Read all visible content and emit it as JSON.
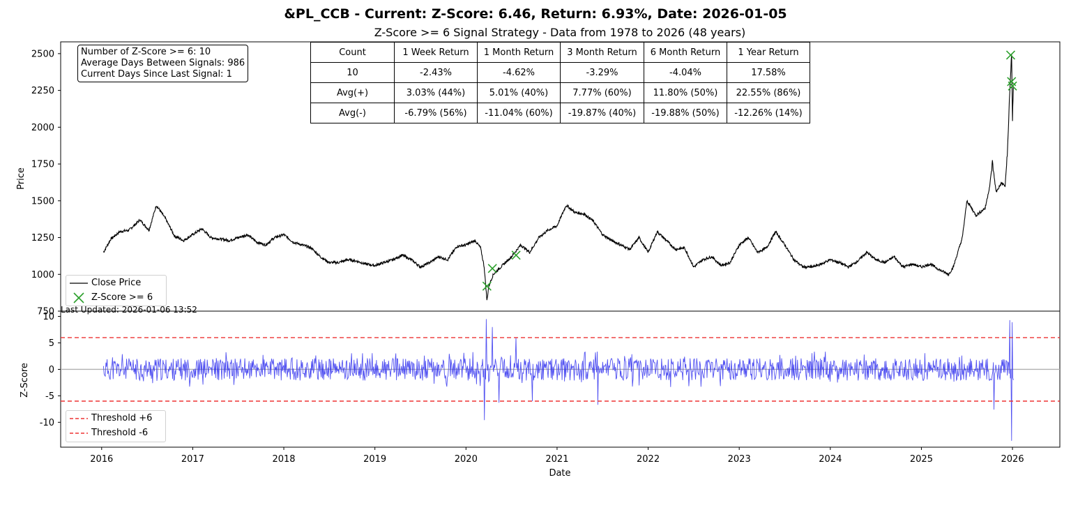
{
  "title": "&PL_CCB - Current: Z-Score: 6.46, Return: 6.93%, Date: 2026-01-05",
  "subtitle": "Z-Score >= 6 Signal Strategy - Data from 1978 to 2026 (48 years)",
  "stats": {
    "line1": "Number of Z-Score >= 6: 10",
    "line2": "Average Days Between Signals: 986",
    "line3": "Current Days Since Last Signal: 1"
  },
  "table": {
    "headers": [
      "Count",
      "1 Week Return",
      "1 Month Return",
      "3 Month Return",
      "6 Month Return",
      "1 Year Return"
    ],
    "rows": [
      [
        "10",
        "-2.43%",
        "-4.62%",
        "-3.29%",
        "-4.04%",
        "17.58%"
      ],
      [
        "Avg(+)",
        "3.03% (44%)",
        "5.01% (40%)",
        "7.77% (60%)",
        "11.80% (50%)",
        "22.55% (86%)"
      ],
      [
        "Avg(-)",
        "-6.79% (56%)",
        "-11.04% (60%)",
        "-19.87% (40%)",
        "-19.88% (50%)",
        "-12.26% (14%)"
      ]
    ]
  },
  "last_updated": "Last Updated: 2026-01-06 13:52",
  "colors": {
    "price": "#000000",
    "signal": "#2ca02c",
    "zscore": "#3333ee",
    "threshold": "#ee3333",
    "zero": "#b0b0b0"
  },
  "chart_data": [
    {
      "type": "line",
      "panel": "price",
      "ylabel": "Price",
      "xlim": [
        2015.55,
        2026.52
      ],
      "ylim": [
        750,
        2580
      ],
      "yticks": [
        750,
        1000,
        1250,
        1500,
        1750,
        2000,
        2250,
        2500
      ],
      "series": [
        {
          "name": "Close Price",
          "x": [
            2016.02,
            2016.1,
            2016.2,
            2016.3,
            2016.42,
            2016.52,
            2016.6,
            2016.7,
            2016.8,
            2016.9,
            2017.0,
            2017.1,
            2017.2,
            2017.3,
            2017.4,
            2017.5,
            2017.6,
            2017.7,
            2017.8,
            2017.9,
            2018.0,
            2018.1,
            2018.2,
            2018.3,
            2018.4,
            2018.5,
            2018.6,
            2018.7,
            2018.8,
            2018.9,
            2019.0,
            2019.1,
            2019.2,
            2019.3,
            2019.4,
            2019.5,
            2019.6,
            2019.7,
            2019.8,
            2019.9,
            2020.0,
            2020.1,
            2020.16,
            2020.2,
            2020.23,
            2020.25,
            2020.3,
            2020.4,
            2020.5,
            2020.6,
            2020.7,
            2020.8,
            2020.9,
            2021.0,
            2021.1,
            2021.2,
            2021.3,
            2021.4,
            2021.5,
            2021.6,
            2021.7,
            2021.8,
            2021.9,
            2022.0,
            2022.1,
            2022.2,
            2022.3,
            2022.4,
            2022.5,
            2022.6,
            2022.7,
            2022.8,
            2022.9,
            2023.0,
            2023.1,
            2023.2,
            2023.3,
            2023.4,
            2023.5,
            2023.6,
            2023.7,
            2023.8,
            2023.9,
            2024.0,
            2024.1,
            2024.2,
            2024.3,
            2024.4,
            2024.5,
            2024.6,
            2024.7,
            2024.8,
            2024.9,
            2025.0,
            2025.1,
            2025.2,
            2025.3,
            2025.35,
            2025.45,
            2025.5,
            2025.6,
            2025.7,
            2025.75,
            2025.78,
            2025.82,
            2025.88,
            2025.92,
            2025.95,
            2025.97,
            2025.99,
            2026.0,
            2026.01
          ],
          "values": [
            1150,
            1240,
            1290,
            1300,
            1370,
            1300,
            1470,
            1380,
            1260,
            1230,
            1270,
            1310,
            1250,
            1240,
            1230,
            1250,
            1270,
            1220,
            1200,
            1250,
            1270,
            1220,
            1200,
            1180,
            1120,
            1080,
            1080,
            1100,
            1090,
            1070,
            1060,
            1080,
            1100,
            1130,
            1100,
            1050,
            1080,
            1120,
            1100,
            1190,
            1200,
            1230,
            1180,
            1050,
            820,
            920,
            1000,
            1060,
            1120,
            1200,
            1150,
            1250,
            1300,
            1330,
            1470,
            1420,
            1410,
            1360,
            1270,
            1230,
            1200,
            1170,
            1250,
            1150,
            1290,
            1230,
            1170,
            1180,
            1050,
            1100,
            1120,
            1060,
            1080,
            1200,
            1250,
            1150,
            1180,
            1290,
            1200,
            1100,
            1050,
            1050,
            1070,
            1100,
            1080,
            1050,
            1090,
            1150,
            1100,
            1080,
            1120,
            1050,
            1070,
            1050,
            1070,
            1030,
            1000,
            1050,
            1250,
            1500,
            1400,
            1450,
            1600,
            1760,
            1560,
            1620,
            1600,
            1900,
            2250,
            2490,
            2050,
            2280
          ]
        },
        {
          "name": "Z-Score >= 6",
          "x": [
            2020.23,
            2020.29,
            2020.55,
            2025.98,
            2025.99,
            2026.0
          ],
          "values": [
            920,
            1040,
            1130,
            2490,
            2310,
            2280
          ]
        }
      ],
      "legend": [
        "Close Price",
        "Z-Score >= 6"
      ],
      "legend_position": "lower-left"
    },
    {
      "type": "line",
      "panel": "zscore",
      "ylabel": "Z-Score",
      "xlabel": "Date",
      "xlim": [
        2015.55,
        2026.52
      ],
      "ylim": [
        -14.7,
        11
      ],
      "yticks": [
        -10,
        -5,
        0,
        5,
        10
      ],
      "xticks": [
        2016,
        2017,
        2018,
        2019,
        2020,
        2021,
        2022,
        2023,
        2024,
        2025,
        2026
      ],
      "thresholds": [
        6,
        -6
      ],
      "legend": [
        "Threshold +6",
        "Threshold -6"
      ],
      "legend_position": "lower-left",
      "spikes": [
        {
          "x": 2020.2,
          "value": -9.6
        },
        {
          "x": 2020.22,
          "value": 9.5
        },
        {
          "x": 2020.29,
          "value": 8.0
        },
        {
          "x": 2020.36,
          "value": -6.3
        },
        {
          "x": 2020.55,
          "value": 6.0
        },
        {
          "x": 2020.73,
          "value": -6.0
        },
        {
          "x": 2021.45,
          "value": -6.7
        },
        {
          "x": 2025.8,
          "value": -7.6
        },
        {
          "x": 2025.97,
          "value": 9.3
        },
        {
          "x": 2025.99,
          "value": -13.5
        },
        {
          "x": 2026.0,
          "value": 8.9
        }
      ],
      "noise_amplitude": 3.5
    }
  ]
}
